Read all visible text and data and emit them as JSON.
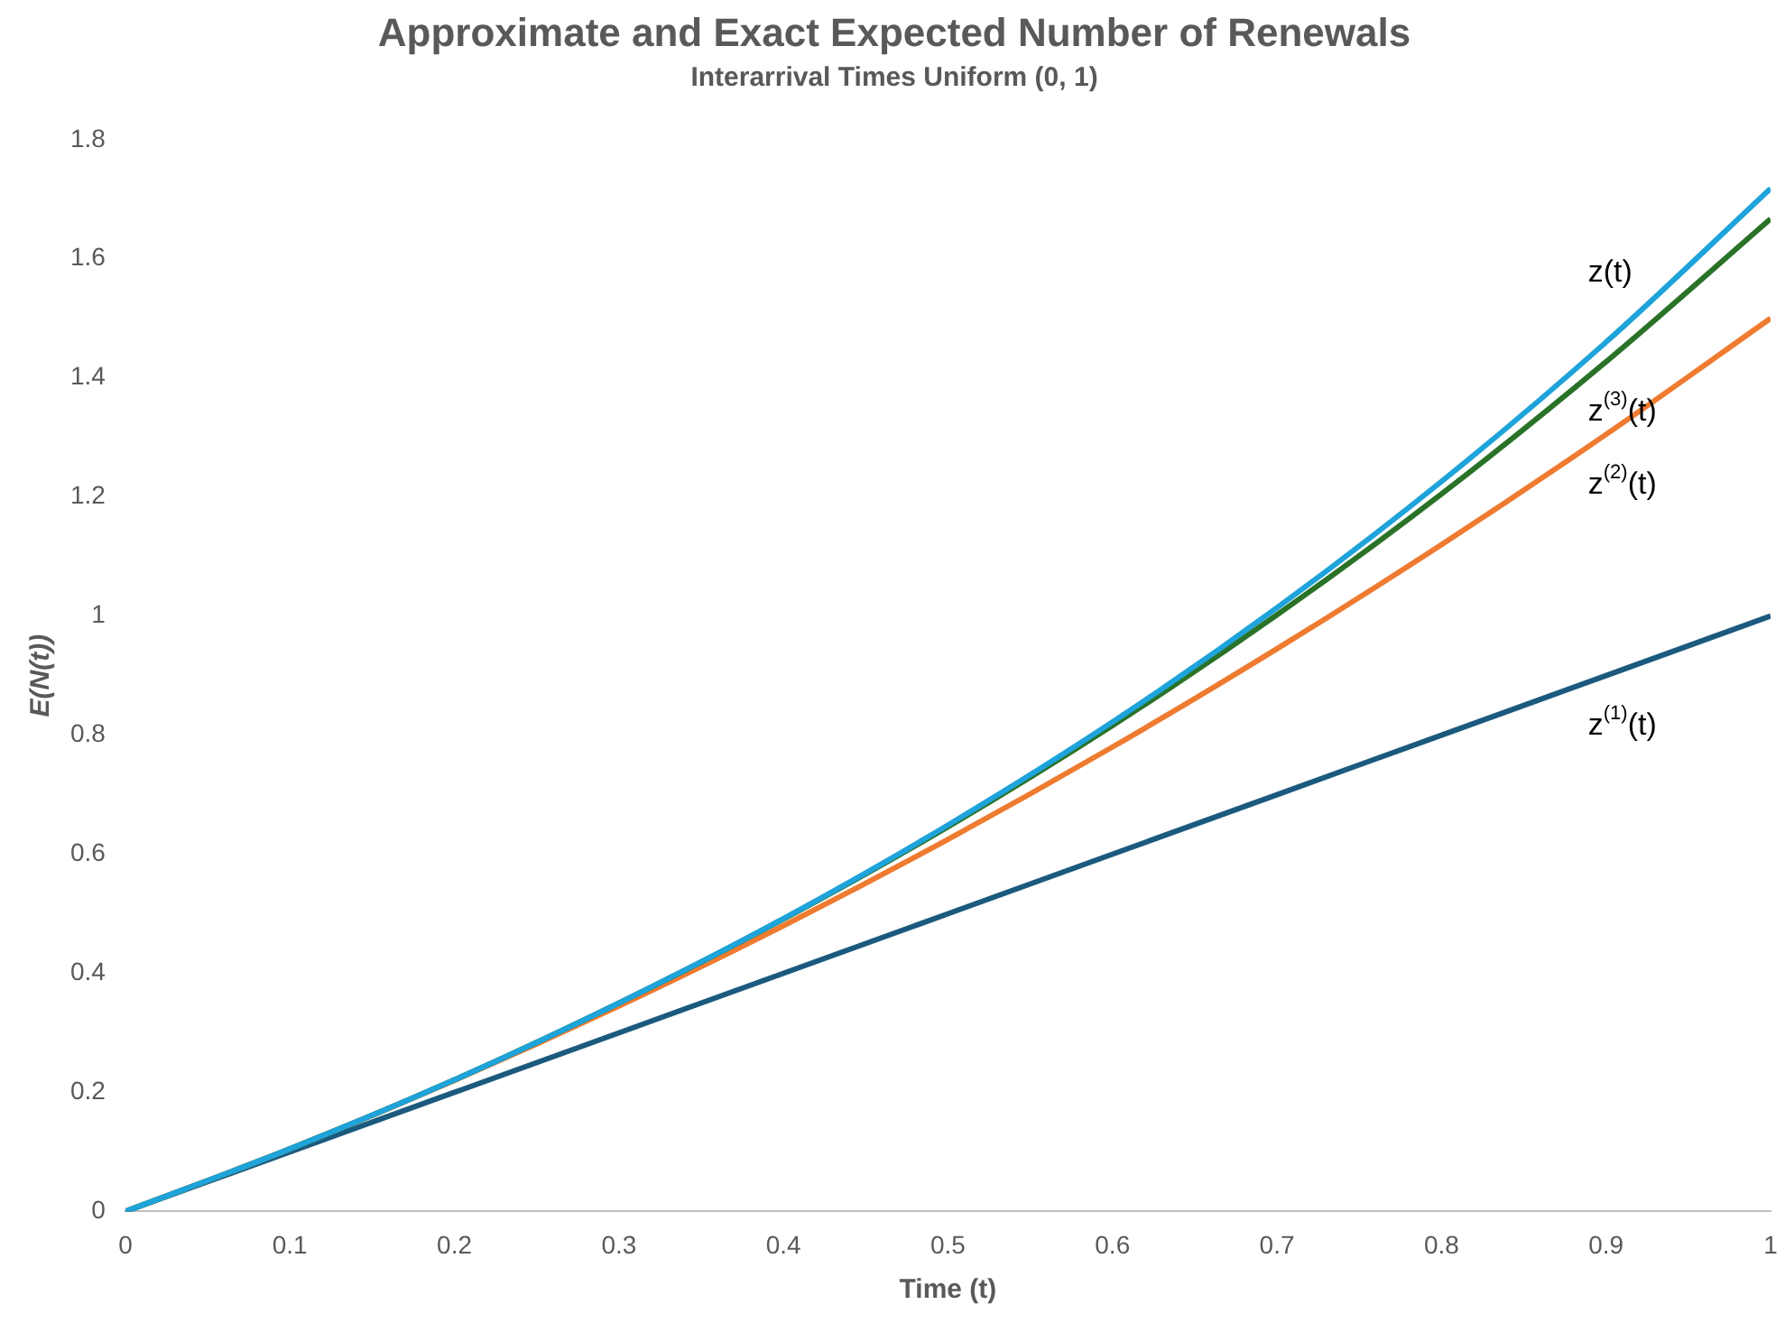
{
  "chart_data": {
    "type": "line",
    "title": "Approximate and Exact Expected Number of Renewals",
    "subtitle": "Interarrival Times Uniform (0, 1)",
    "xlabel": "Time (t)",
    "ylabel": "E(N(t))",
    "x": [
      0,
      0.1,
      0.2,
      0.3,
      0.4,
      0.5,
      0.6,
      0.7,
      0.8,
      0.9,
      1
    ],
    "series": [
      {
        "name": "z$^{(1)}$(t)",
        "color": "#1b5a7e",
        "values": [
          0,
          0.1,
          0.2,
          0.3,
          0.4,
          0.5,
          0.6,
          0.7,
          0.8,
          0.9,
          1
        ]
      },
      {
        "name": "z$^{(2)}$(t)",
        "color": "#ee7b30",
        "values": [
          0,
          0.105,
          0.22,
          0.345,
          0.48,
          0.625,
          0.78,
          0.945,
          1.12,
          1.305,
          1.5
        ]
      },
      {
        "name": "z$^{(3)}$(t)",
        "color": "#2a7228",
        "values": [
          0,
          0.105,
          0.221,
          0.35,
          0.491,
          0.646,
          0.816,
          1.002,
          1.205,
          1.427,
          1.667
        ]
      },
      {
        "name": "z(t)",
        "color": "#1ea3da",
        "values": [
          0,
          0.105,
          0.221,
          0.35,
          0.492,
          0.649,
          0.822,
          1.014,
          1.226,
          1.46,
          1.718
        ]
      }
    ],
    "xlim": [
      0,
      1
    ],
    "xticks": [
      0,
      0.1,
      0.2,
      0.3,
      0.4,
      0.5,
      0.6,
      0.7,
      0.8,
      0.9,
      1
    ],
    "ylim": [
      0,
      1.8
    ],
    "yticks": [
      0,
      0.2,
      0.4,
      0.6,
      0.8,
      1,
      1.2,
      1.4,
      1.6,
      1.8
    ],
    "grid": false,
    "legend": false,
    "marker": "none",
    "line_style": "solid"
  }
}
